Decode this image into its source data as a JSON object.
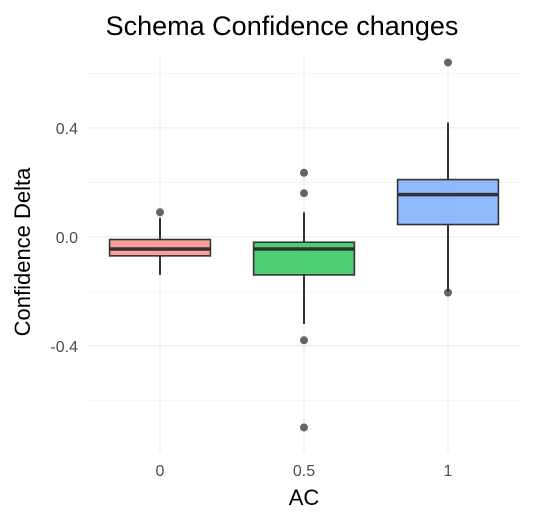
{
  "chart_data": {
    "type": "box",
    "title": "Schema Confidence changes",
    "xlabel": "AC",
    "ylabel": "Confidence Delta",
    "categories": [
      "0",
      "0.5",
      "1"
    ],
    "ylim": [
      -0.79,
      0.66
    ],
    "y_ticks": [
      -0.4,
      0.0,
      0.4
    ],
    "y_tick_labels": [
      "-0.4",
      "0.0",
      "0.4"
    ],
    "grid": true,
    "legend": "none",
    "series": [
      {
        "category": "0",
        "color": "#F8766D",
        "whisker_low": -0.14,
        "q1": -0.07,
        "median": -0.045,
        "q3": -0.01,
        "whisker_high": 0.07,
        "outliers": [
          0.09
        ]
      },
      {
        "category": "0.5",
        "color": "#00BA38",
        "whisker_low": -0.32,
        "q1": -0.14,
        "median": -0.045,
        "q3": -0.02,
        "whisker_high": 0.09,
        "outliers": [
          0.16,
          0.235,
          -0.38,
          -0.7
        ]
      },
      {
        "category": "1",
        "color": "#619CFF",
        "whisker_low": -0.2,
        "q1": 0.045,
        "median": 0.155,
        "q3": 0.21,
        "whisker_high": 0.42,
        "outliers": [
          0.64,
          -0.205
        ]
      }
    ]
  }
}
